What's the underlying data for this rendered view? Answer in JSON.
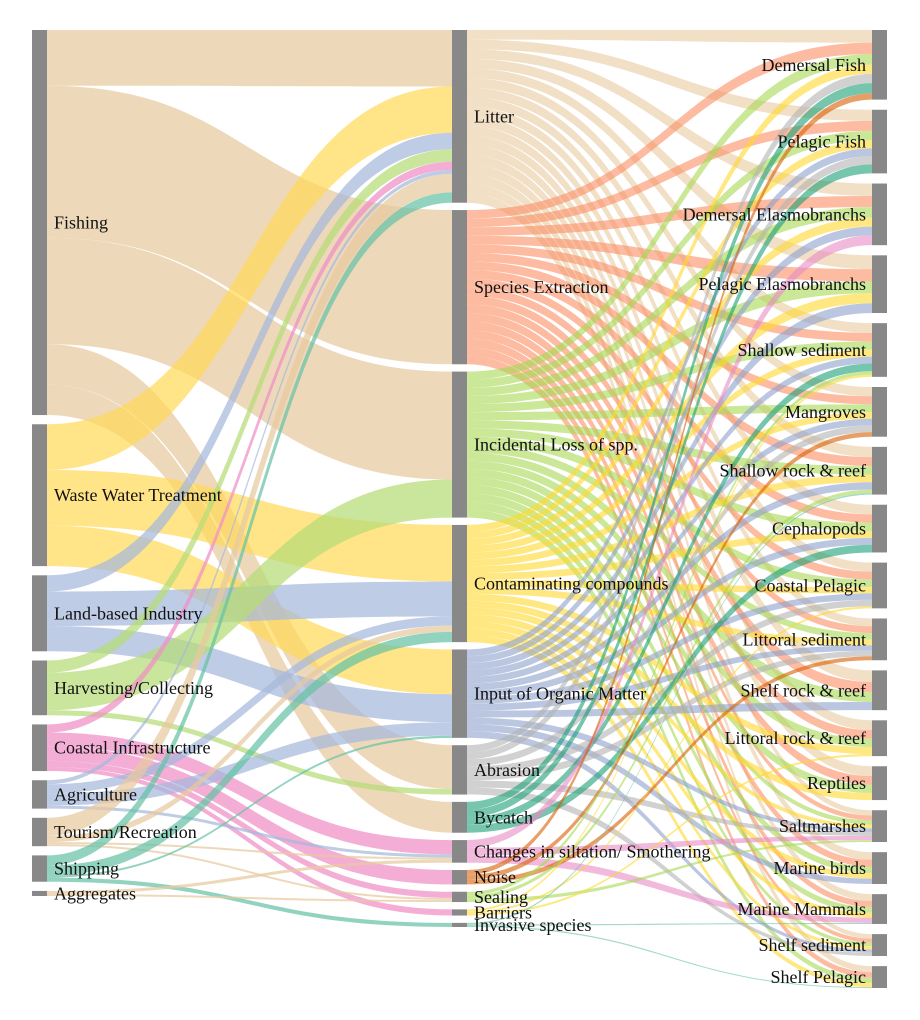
{
  "chart_data": {
    "type": "sankey",
    "title": "",
    "palette": {
      "Fishing": "#e7c9a0",
      "Waste Water Treatment": "#ffd95a",
      "Land-based Industry": "#a6b8dc",
      "Harvesting/Collecting": "#b6dc76",
      "Coastal Infrastructure": "#f08fc6",
      "Agriculture": "#a6b8dc",
      "Tourism/Recreation": "#e7c9a0",
      "Shipping": "#66c2a5",
      "Aggregates": "#e7c9a0",
      "Species Extraction": "#fc8d62",
      "Incidental Loss of spp.": "#a6d854",
      "Abrasion": "#b3b3b3",
      "Bycatch": "#1b9e77",
      "Noise": "#d95f02",
      "Litter": "#e7c9a0",
      "Contaminating compounds": "#ffd92f",
      "Input of Organic Matter": "#8da0cb",
      "Changes in siltation/ Smothering": "#e78ac3",
      "Sealing": "#a6d854",
      "Barriers": "#ffd92f",
      "Invasive species": "#66c2a5"
    },
    "sources": [
      {
        "name": "Fishing",
        "value": 380
      },
      {
        "name": "Waste Water Treatment",
        "value": 140
      },
      {
        "name": "Land-based Industry",
        "value": 75
      },
      {
        "name": "Harvesting/Collecting",
        "value": 54
      },
      {
        "name": "Coastal Infrastructure",
        "value": 46
      },
      {
        "name": "Agriculture",
        "value": 28
      },
      {
        "name": "Tourism/Recreation",
        "value": 28
      },
      {
        "name": "Shipping",
        "value": 26
      },
      {
        "name": "Aggregates",
        "value": 5
      }
    ],
    "pressures": [
      {
        "name": "Litter",
        "value": 168
      },
      {
        "name": "Species Extraction",
        "value": 150
      },
      {
        "name": "Incidental Loss of spp.",
        "value": 142
      },
      {
        "name": "Contaminating compounds",
        "value": 114
      },
      {
        "name": "Input of Organic Matter",
        "value": 86
      },
      {
        "name": "Abrasion",
        "value": 48
      },
      {
        "name": "Bycatch",
        "value": 30
      },
      {
        "name": "Changes in siltation/ Smothering",
        "value": 22
      },
      {
        "name": "Noise",
        "value": 14
      },
      {
        "name": "Sealing",
        "value": 10
      },
      {
        "name": "Barriers",
        "value": 6
      },
      {
        "name": "Invasive species",
        "value": 4
      }
    ],
    "receptors": [
      {
        "name": "Demersal Fish",
        "value": 70
      },
      {
        "name": "Pelagic Fish",
        "value": 64
      },
      {
        "name": "Demersal Elasmobranchs",
        "value": 62
      },
      {
        "name": "Pelagic Elasmobranchs",
        "value": 58
      },
      {
        "name": "Shallow sediment",
        "value": 54
      },
      {
        "name": "Mangroves",
        "value": 50
      },
      {
        "name": "Shallow rock & reef",
        "value": 48
      },
      {
        "name": "Cephalopods",
        "value": 48
      },
      {
        "name": "Coastal Pelagic",
        "value": 46
      },
      {
        "name": "Littoral sediment",
        "value": 42
      },
      {
        "name": "Shelf rock & reef",
        "value": 40
      },
      {
        "name": "Littoral rock & reef",
        "value": 36
      },
      {
        "name": "Reptiles",
        "value": 34
      },
      {
        "name": "Saltmarshes",
        "value": 32
      },
      {
        "name": "Marine birds",
        "value": 32
      },
      {
        "name": "Marine Mammals",
        "value": 30
      },
      {
        "name": "Shelf sediment",
        "value": 22
      },
      {
        "name": "Shelf Pelagic",
        "value": 22
      }
    ],
    "links_source_pressure": [
      [
        "Fishing",
        "Litter",
        55
      ],
      [
        "Fishing",
        "Species Extraction",
        150
      ],
      [
        "Fishing",
        "Incidental Loss of spp.",
        105
      ],
      [
        "Fishing",
        "Abrasion",
        40
      ],
      [
        "Fishing",
        "Bycatch",
        30
      ],
      [
        "Waste Water Treatment",
        "Litter",
        45
      ],
      [
        "Waste Water Treatment",
        "Contaminating compounds",
        55
      ],
      [
        "Waste Water Treatment",
        "Input of Organic Matter",
        40
      ],
      [
        "Land-based Industry",
        "Litter",
        16
      ],
      [
        "Land-based Industry",
        "Contaminating compounds",
        34
      ],
      [
        "Land-based Industry",
        "Input of Organic Matter",
        25
      ],
      [
        "Harvesting/Collecting",
        "Litter",
        12
      ],
      [
        "Harvesting/Collecting",
        "Incidental Loss of spp.",
        37
      ],
      [
        "Harvesting/Collecting",
        "Abrasion",
        5
      ],
      [
        "Coastal Infrastructure",
        "Litter",
        8
      ],
      [
        "Coastal Infrastructure",
        "Changes in siltation/ Smothering",
        14
      ],
      [
        "Coastal Infrastructure",
        "Noise",
        14
      ],
      [
        "Coastal Infrastructure",
        "Sealing",
        6
      ],
      [
        "Coastal Infrastructure",
        "Barriers",
        4
      ],
      [
        "Agriculture",
        "Litter",
        4
      ],
      [
        "Agriculture",
        "Contaminating compounds",
        9
      ],
      [
        "Agriculture",
        "Input of Organic Matter",
        12
      ],
      [
        "Agriculture",
        "Changes in siltation/ Smothering",
        3
      ],
      [
        "Tourism/Recreation",
        "Litter",
        18
      ],
      [
        "Tourism/Recreation",
        "Contaminating compounds",
        6
      ],
      [
        "Tourism/Recreation",
        "Changes in siltation/ Smothering",
        2
      ],
      [
        "Tourism/Recreation",
        "Sealing",
        2
      ],
      [
        "Shipping",
        "Litter",
        10
      ],
      [
        "Shipping",
        "Contaminating compounds",
        10
      ],
      [
        "Shipping",
        "Input of Organic Matter",
        2
      ],
      [
        "Shipping",
        "Invasive species",
        4
      ],
      [
        "Aggregates",
        "Changes in siltation/ Smothering",
        3
      ],
      [
        "Aggregates",
        "Sealing",
        2
      ]
    ]
  }
}
